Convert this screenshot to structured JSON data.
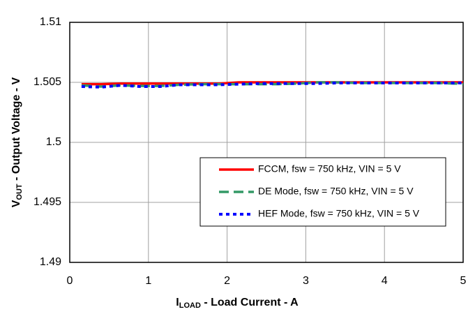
{
  "chart_data": {
    "type": "line",
    "xlabel": [
      "I",
      "LOAD",
      " - Load Current - A"
    ],
    "ylabel": [
      "V",
      "OUT",
      " - Output Voltage - V"
    ],
    "x": [
      0.15,
      0.4,
      0.65,
      0.9,
      1.15,
      1.4,
      1.65,
      1.9,
      2.15,
      2.4,
      2.65,
      2.9,
      3.15,
      3.4,
      3.65,
      3.9,
      4.15,
      4.4,
      4.65,
      4.9,
      5
    ],
    "series": [
      {
        "name": "FCCM, fsw = 750 kHz, VIN = 5 V",
        "color": "#ff0000",
        "dash": "solid",
        "values": [
          1.50485,
          1.50485,
          1.5049,
          1.5049,
          1.5049,
          1.5049,
          1.5049,
          1.5049,
          1.505,
          1.505,
          1.505,
          1.505,
          1.505,
          1.505,
          1.505,
          1.505,
          1.505,
          1.505,
          1.505,
          1.505,
          1.505
        ]
      },
      {
        "name": "DE Mode, fsw = 750 kHz, VIN = 5 V",
        "color": "#339966",
        "dash": "dashed",
        "values": [
          1.50475,
          1.50465,
          1.50475,
          1.5047,
          1.5047,
          1.5048,
          1.50485,
          1.50485,
          1.50485,
          1.50485,
          1.50485,
          1.5049,
          1.505,
          1.505,
          1.50495,
          1.50495,
          1.50495,
          1.50495,
          1.50495,
          1.5049,
          1.50485
        ]
      },
      {
        "name": "HEF Mode, fsw = 750 kHz, VIN = 5 V",
        "color": "#0000ff",
        "dash": "dotted",
        "values": [
          1.50465,
          1.5046,
          1.50475,
          1.50465,
          1.50465,
          1.5048,
          1.5048,
          1.5048,
          1.50485,
          1.5049,
          1.5049,
          1.5049,
          1.5049,
          1.50495,
          1.50495,
          1.50495,
          1.50495,
          1.50495,
          1.50495,
          1.50495,
          1.50495
        ]
      }
    ],
    "xlim": [
      0,
      5
    ],
    "xticks": [
      0,
      1,
      2,
      3,
      4,
      5
    ],
    "ylim": [
      1.49,
      1.51
    ],
    "yticks": [
      1.49,
      1.495,
      1.5,
      1.505,
      1.51
    ],
    "grid": true,
    "legend": "lower right"
  }
}
